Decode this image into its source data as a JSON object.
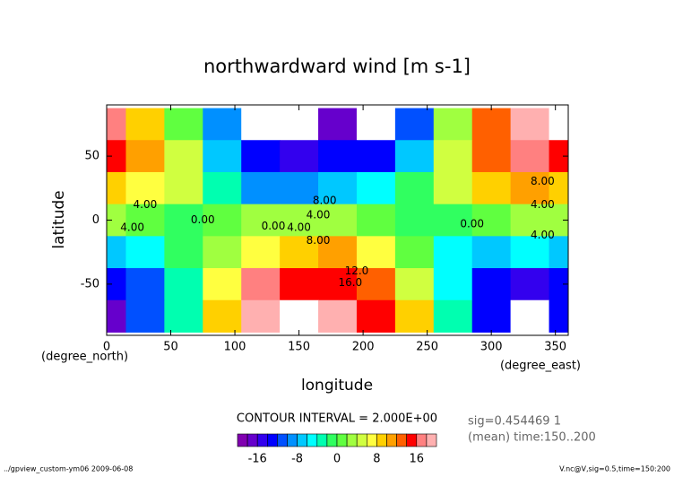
{
  "chart_data": {
    "type": "contour",
    "title": "northwardward wind [m s-1]",
    "xlabel": "longitude",
    "ylabel": "latitude",
    "xunit": "(degree_east)",
    "yunit": "(degree_north)",
    "x": [
      0,
      30,
      60,
      90,
      120,
      150,
      180,
      210,
      240,
      270,
      300,
      330,
      360
    ],
    "y": [
      75,
      50,
      25,
      0,
      -25,
      -50,
      -75
    ],
    "z": [
      [
        16,
        8,
        0,
        -10,
        -24,
        -24,
        -18,
        -24,
        -12,
        2,
        12,
        18,
        22
      ],
      [
        14,
        10,
        4,
        -8,
        -14,
        -16,
        -14,
        -14,
        -8,
        4,
        12,
        16,
        14
      ],
      [
        8,
        6,
        4,
        -4,
        -10,
        -10,
        -8,
        -6,
        -2,
        4,
        8,
        10,
        8
      ],
      [
        2,
        0,
        -2,
        0,
        2,
        2,
        2,
        0,
        -2,
        -2,
        0,
        2,
        2
      ],
      [
        -8,
        -6,
        -2,
        2,
        6,
        8,
        10,
        6,
        0,
        -6,
        -8,
        -6,
        -8
      ],
      [
        -14,
        -12,
        -4,
        6,
        16,
        14,
        14,
        12,
        4,
        -6,
        -14,
        -16,
        -14
      ],
      [
        -18,
        -12,
        -4,
        8,
        18,
        24,
        18,
        14,
        8,
        -4,
        -14,
        -24,
        -14
      ]
    ],
    "xlim": [
      0,
      360
    ],
    "ylim": [
      -90,
      90
    ],
    "xticks": [
      0,
      50,
      100,
      150,
      200,
      250,
      300,
      350
    ],
    "yticks": [
      -50,
      0,
      50
    ],
    "annotations": [
      {
        "text": "4.00",
        "x": 30,
        "y": 12
      },
      {
        "text": "0.00",
        "x": 75,
        "y": 0
      },
      {
        "text": "4.00",
        "x": 20,
        "y": -6
      },
      {
        "text": "0.00",
        "x": 130,
        "y": -5
      },
      {
        "text": "4.00",
        "x": 150,
        "y": -6
      },
      {
        "text": "4.00",
        "x": 165,
        "y": 4
      },
      {
        "text": "8.00",
        "x": 170,
        "y": 15
      },
      {
        "text": "8.00",
        "x": 165,
        "y": -16
      },
      {
        "text": "12.0",
        "x": 195,
        "y": -40
      },
      {
        "text": "16.0",
        "x": 190,
        "y": -49
      },
      {
        "text": "0.00",
        "x": 285,
        "y": -3
      },
      {
        "text": "4.00",
        "x": 340,
        "y": 12
      },
      {
        "text": "4.00",
        "x": 340,
        "y": -12
      },
      {
        "text": "8.00",
        "x": 340,
        "y": 30
      }
    ],
    "colorbar": {
      "title": "CONTOUR INTERVAL = 2.000E+00",
      "levels": [
        -20,
        -18,
        -16,
        -14,
        -12,
        -10,
        -8,
        -6,
        -4,
        -2,
        0,
        2,
        4,
        6,
        8,
        10,
        12,
        14,
        16,
        18,
        20
      ],
      "colors": [
        "#8000b0",
        "#6600cc",
        "#3300ee",
        "#0000ff",
        "#0050ff",
        "#0090ff",
        "#00c8ff",
        "#00ffff",
        "#00ffb0",
        "#30ff60",
        "#60ff40",
        "#a0ff40",
        "#d0ff40",
        "#ffff40",
        "#ffd000",
        "#ffa000",
        "#ff6000",
        "#ff0000",
        "#ff8080",
        "#ffb0b0"
      ],
      "ticks": [
        -16,
        -8,
        0,
        8,
        16
      ]
    },
    "info": [
      "sig=0.454469 1",
      "(mean) time:150..200"
    ],
    "footer_left": "../gpview_custom-ym06  2009-06-08",
    "footer_right": "V.nc@V,sig=0.5,time=150:200"
  }
}
